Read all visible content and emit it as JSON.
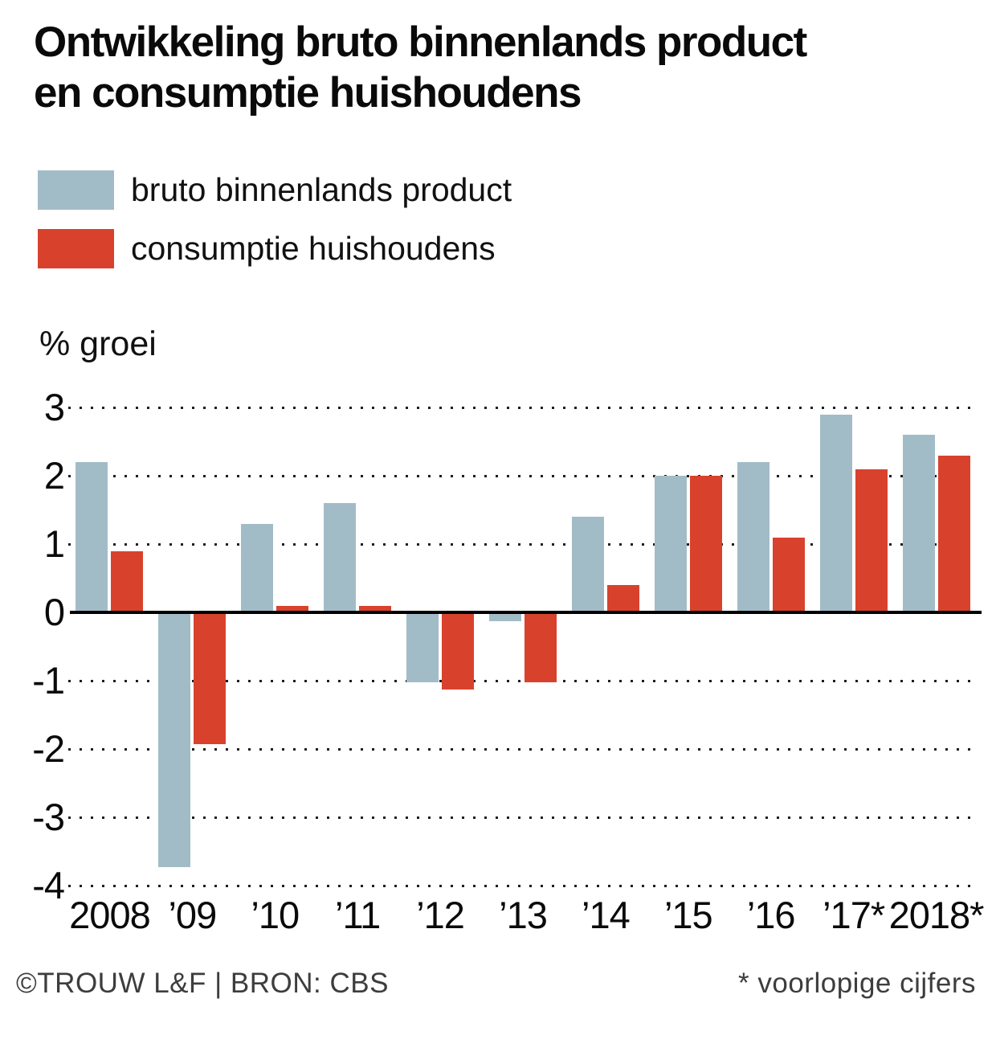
{
  "title": {
    "line1": "Ontwikkeling bruto binnenlands product",
    "line2": "en consumptie huishoudens"
  },
  "legend": [
    {
      "label": "bruto binnenlands product",
      "color": "#a2bcc7"
    },
    {
      "label": "consumptie huishoudens",
      "color": "#d8422d"
    }
  ],
  "colors": {
    "gdp": "#a2bcc7",
    "consumption": "#d8422d",
    "axis_line": "#000000",
    "grid_dots": "#1e1e1e",
    "footer_text": "#3d3d3d"
  },
  "footer": {
    "left": "©TROUW L&F | BRON: CBS",
    "right": "* voorlopige cijfers"
  },
  "chart_data": {
    "type": "bar",
    "title": "Ontwikkeling bruto binnenlands product en consumptie huishoudens",
    "ylabel": "% groei",
    "xlabel": "",
    "categories": [
      "2008",
      "’09",
      "’10",
      "’11",
      "’12",
      "’13",
      "’14",
      "’15",
      "’16",
      "’17*",
      "2018*"
    ],
    "series": [
      {
        "name": "bruto binnenlands product",
        "color": "#a2bcc7",
        "values": [
          2.2,
          -3.7,
          1.3,
          1.6,
          -1.0,
          -0.1,
          1.4,
          2.0,
          2.2,
          2.9,
          2.6
        ]
      },
      {
        "name": "consumptie huishoudens",
        "color": "#d8422d",
        "values": [
          0.9,
          -1.9,
          0.1,
          0.1,
          -1.1,
          -1.0,
          0.4,
          2.0,
          1.1,
          2.1,
          2.3
        ]
      }
    ],
    "yticks": [
      3,
      2,
      1,
      0,
      -1,
      -2,
      -3,
      -4
    ],
    "ylim": [
      -4,
      3
    ],
    "unit": "% groei",
    "grid": "horizontal dotted",
    "legend_position": "top-left",
    "footnote": "* voorlopige cijfers"
  }
}
